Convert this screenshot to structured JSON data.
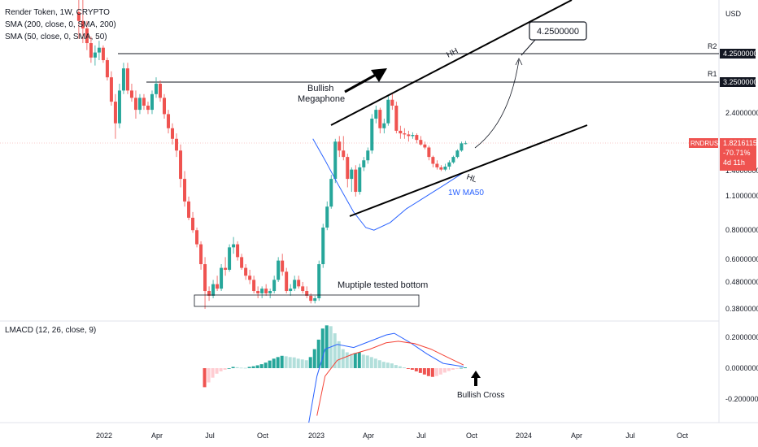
{
  "header": {
    "title": "Render Token, 1W, CRYPTO",
    "sma200": "SMA (200, close, 0, SMA, 200)",
    "sma50": "SMA (50, close, 0, SMA, 50)",
    "indicator": "LMACD (12, 26, close, 9)",
    "currency": "USD"
  },
  "price_axis": {
    "ticks": [
      "3.2500000",
      "2.4000000",
      "1.4000000",
      "1.1000000",
      "0.8000000",
      "0.6000000",
      "0.4800000",
      "0.3800000"
    ],
    "r2_label": "R2",
    "r2_value": "4.2500000",
    "r1_label": "R1",
    "r1_value": "3.2500000",
    "symbol": "RNDRUSD",
    "last_price": "1.8216115",
    "change": "-70.71%",
    "countdown": "4d 11h"
  },
  "macd_axis": {
    "ticks": [
      "0.2000000",
      "0.0000000",
      "-0.2000000"
    ]
  },
  "time_axis": {
    "ticks": [
      "2022",
      "Apr",
      "Jul",
      "Oct",
      "2023",
      "Apr",
      "Jul",
      "Oct",
      "2024",
      "Apr",
      "Jul",
      "Oct"
    ]
  },
  "annotations": {
    "target": "4.2500000",
    "hh": "HH",
    "hl": "HL",
    "pattern_line1": "Bullish",
    "pattern_line2": "Megaphone",
    "ma_label": "1W MA50",
    "bottom": "Muptiple tested bottom",
    "cross": "Bullish Cross"
  },
  "colors": {
    "up": "#26a69a",
    "down": "#ef5350",
    "ma50": "#2962ff",
    "signal": "#f44336",
    "macd_up_strong": "#26a69a",
    "macd_up_weak": "#b2dfdb",
    "macd_down_strong": "#ef5350",
    "macd_down_weak": "#ffcdd2"
  },
  "chart_data": {
    "type": "candlestick",
    "timeframe": "1W",
    "price_scale": "log",
    "y_range": [
      0.32,
      5.0
    ],
    "levels": [
      {
        "name": "R2",
        "value": 4.25
      },
      {
        "name": "R1",
        "value": 3.25
      }
    ],
    "candles": [
      [
        "2021-11-15",
        6.3,
        8.2,
        4.9,
        5.8
      ],
      [
        "2021-11-22",
        5.8,
        7.5,
        4.7,
        5.4
      ],
      [
        "2021-11-29",
        5.4,
        5.8,
        4.4,
        4.7
      ],
      [
        "2021-12-06",
        4.7,
        5.0,
        3.9,
        4.1
      ],
      [
        "2021-12-13",
        4.1,
        4.6,
        3.8,
        4.3
      ],
      [
        "2021-12-20",
        4.3,
        4.8,
        4.0,
        4.5
      ],
      [
        "2021-12-27",
        4.5,
        4.6,
        3.9,
        4.0
      ],
      [
        "2022-01-03",
        4.0,
        4.1,
        3.3,
        3.4
      ],
      [
        "2022-01-10",
        3.4,
        3.6,
        2.6,
        2.7
      ],
      [
        "2022-01-17",
        2.7,
        2.9,
        1.9,
        2.2
      ],
      [
        "2022-01-24",
        2.2,
        3.2,
        2.1,
        3.0
      ],
      [
        "2022-01-31",
        3.0,
        3.9,
        2.9,
        3.7
      ],
      [
        "2022-02-07",
        3.7,
        3.9,
        2.9,
        3.0
      ],
      [
        "2022-02-14",
        3.0,
        3.2,
        2.7,
        2.8
      ],
      [
        "2022-02-21",
        2.8,
        3.0,
        2.3,
        2.5
      ],
      [
        "2022-02-28",
        2.5,
        2.9,
        2.4,
        2.8
      ],
      [
        "2022-03-07",
        2.8,
        2.9,
        2.5,
        2.6
      ],
      [
        "2022-03-14",
        2.6,
        2.7,
        2.4,
        2.5
      ],
      [
        "2022-03-21",
        2.5,
        3.0,
        2.4,
        2.9
      ],
      [
        "2022-03-28",
        2.9,
        3.4,
        2.8,
        3.2
      ],
      [
        "2022-04-04",
        3.2,
        3.3,
        2.7,
        2.8
      ],
      [
        "2022-04-11",
        2.8,
        2.9,
        2.3,
        2.4
      ],
      [
        "2022-04-18",
        2.4,
        2.5,
        2.0,
        2.1
      ],
      [
        "2022-04-25",
        2.1,
        2.2,
        1.8,
        1.9
      ],
      [
        "2022-05-02",
        1.9,
        2.0,
        1.6,
        1.7
      ],
      [
        "2022-05-09",
        1.7,
        1.8,
        1.2,
        1.3
      ],
      [
        "2022-05-16",
        1.3,
        1.4,
        1.0,
        1.05
      ],
      [
        "2022-05-23",
        1.05,
        1.1,
        0.88,
        0.9
      ],
      [
        "2022-05-30",
        0.9,
        0.95,
        0.78,
        0.8
      ],
      [
        "2022-06-06",
        0.8,
        0.82,
        0.68,
        0.7
      ],
      [
        "2022-06-13",
        0.7,
        0.72,
        0.55,
        0.58
      ],
      [
        "2022-06-20",
        0.58,
        0.62,
        0.38,
        0.45
      ],
      [
        "2022-06-27",
        0.45,
        0.47,
        0.41,
        0.43
      ],
      [
        "2022-07-04",
        0.43,
        0.5,
        0.42,
        0.48
      ],
      [
        "2022-07-11",
        0.48,
        0.52,
        0.45,
        0.46
      ],
      [
        "2022-07-18",
        0.46,
        0.58,
        0.45,
        0.56
      ],
      [
        "2022-07-25",
        0.56,
        0.62,
        0.52,
        0.55
      ],
      [
        "2022-08-01",
        0.55,
        0.7,
        0.54,
        0.68
      ],
      [
        "2022-08-08",
        0.68,
        0.75,
        0.64,
        0.7
      ],
      [
        "2022-08-15",
        0.7,
        0.72,
        0.6,
        0.62
      ],
      [
        "2022-08-22",
        0.62,
        0.64,
        0.55,
        0.56
      ],
      [
        "2022-08-29",
        0.56,
        0.58,
        0.5,
        0.52
      ],
      [
        "2022-09-05",
        0.52,
        0.55,
        0.48,
        0.5
      ],
      [
        "2022-09-12",
        0.5,
        0.52,
        0.44,
        0.45
      ],
      [
        "2022-09-19",
        0.45,
        0.47,
        0.42,
        0.44
      ],
      [
        "2022-09-26",
        0.44,
        0.47,
        0.42,
        0.46
      ],
      [
        "2022-10-03",
        0.46,
        0.48,
        0.43,
        0.44
      ],
      [
        "2022-10-10",
        0.44,
        0.46,
        0.42,
        0.45
      ],
      [
        "2022-10-17",
        0.45,
        0.52,
        0.44,
        0.5
      ],
      [
        "2022-10-24",
        0.5,
        0.62,
        0.49,
        0.6
      ],
      [
        "2022-10-31",
        0.6,
        0.64,
        0.52,
        0.54
      ],
      [
        "2022-11-07",
        0.54,
        0.56,
        0.44,
        0.45
      ],
      [
        "2022-11-14",
        0.45,
        0.48,
        0.43,
        0.46
      ],
      [
        "2022-11-21",
        0.46,
        0.52,
        0.45,
        0.5
      ],
      [
        "2022-11-28",
        0.5,
        0.52,
        0.46,
        0.47
      ],
      [
        "2022-12-05",
        0.47,
        0.49,
        0.44,
        0.45
      ],
      [
        "2022-12-12",
        0.45,
        0.47,
        0.42,
        0.43
      ],
      [
        "2022-12-19",
        0.43,
        0.44,
        0.4,
        0.41
      ],
      [
        "2022-12-26",
        0.41,
        0.43,
        0.4,
        0.42
      ],
      [
        "2023-01-02",
        0.42,
        0.6,
        0.41,
        0.58
      ],
      [
        "2023-01-09",
        0.58,
        0.85,
        0.56,
        0.82
      ],
      [
        "2023-01-16",
        0.82,
        1.05,
        0.8,
        1.0
      ],
      [
        "2023-01-23",
        1.0,
        1.35,
        0.98,
        1.3
      ],
      [
        "2023-01-30",
        1.3,
        1.9,
        1.25,
        1.85
      ],
      [
        "2023-02-06",
        1.85,
        1.95,
        1.6,
        1.7
      ],
      [
        "2023-02-13",
        1.7,
        1.95,
        1.55,
        1.6
      ],
      [
        "2023-02-20",
        1.6,
        1.65,
        1.2,
        1.3
      ],
      [
        "2023-02-27",
        1.3,
        1.45,
        1.15,
        1.42
      ],
      [
        "2023-03-06",
        1.42,
        1.48,
        1.1,
        1.15
      ],
      [
        "2023-03-13",
        1.15,
        1.5,
        1.12,
        1.45
      ],
      [
        "2023-03-20",
        1.45,
        1.6,
        1.4,
        1.55
      ],
      [
        "2023-03-27",
        1.55,
        1.75,
        1.5,
        1.7
      ],
      [
        "2023-04-03",
        1.7,
        2.4,
        1.65,
        2.3
      ],
      [
        "2023-04-10",
        2.3,
        2.6,
        2.2,
        2.5
      ],
      [
        "2023-04-17",
        2.5,
        2.55,
        2.0,
        2.1
      ],
      [
        "2023-04-24",
        2.1,
        2.3,
        2.0,
        2.2
      ],
      [
        "2023-05-01",
        2.2,
        2.85,
        2.15,
        2.75
      ],
      [
        "2023-05-08",
        2.75,
        2.9,
        2.5,
        2.6
      ],
      [
        "2023-05-15",
        2.6,
        2.7,
        2.0,
        2.05
      ],
      [
        "2023-05-22",
        2.05,
        2.15,
        1.9,
        2.0
      ],
      [
        "2023-05-29",
        2.0,
        2.1,
        1.9,
        1.98
      ],
      [
        "2023-06-05",
        1.98,
        2.05,
        1.85,
        1.95
      ],
      [
        "2023-06-12",
        1.95,
        2.02,
        1.9,
        1.97
      ],
      [
        "2023-06-19",
        1.97,
        2.0,
        1.82,
        1.88
      ],
      [
        "2023-06-26",
        1.88,
        1.95,
        1.78,
        1.8
      ],
      [
        "2023-07-03",
        1.8,
        1.85,
        1.72,
        1.75
      ],
      [
        "2023-07-10",
        1.75,
        1.78,
        1.55,
        1.6
      ],
      [
        "2023-07-17",
        1.6,
        1.62,
        1.45,
        1.5
      ],
      [
        "2023-07-24",
        1.5,
        1.55,
        1.42,
        1.45
      ],
      [
        "2023-07-31",
        1.45,
        1.48,
        1.4,
        1.42
      ],
      [
        "2023-08-07",
        1.42,
        1.5,
        1.4,
        1.46
      ],
      [
        "2023-08-14",
        1.46,
        1.55,
        1.42,
        1.52
      ],
      [
        "2023-08-21",
        1.52,
        1.62,
        1.5,
        1.6
      ],
      [
        "2023-08-28",
        1.6,
        1.72,
        1.58,
        1.7
      ],
      [
        "2023-09-04",
        1.7,
        1.85,
        1.68,
        1.82
      ],
      [
        "2023-09-11",
        1.82,
        1.86,
        1.8,
        1.8216
      ]
    ],
    "ma50": {
      "name": "1W MA50",
      "x": [
        "2022-12-26",
        "2023-01-16",
        "2023-02-06",
        "2023-03-06",
        "2023-03-27",
        "2023-04-10",
        "2023-05-08",
        "2023-06-05",
        "2023-07-03",
        "2023-08-07",
        "2023-09-11"
      ],
      "y": [
        1.9,
        1.55,
        1.25,
        0.95,
        0.82,
        0.8,
        0.86,
        0.98,
        1.08,
        1.22,
        1.38
      ]
    },
    "macd": {
      "title": "LMACD (12, 26, close, 9)",
      "y_range": [
        -0.28,
        0.28
      ],
      "histogram": [
        [
          "2022-06-20",
          -0.12
        ],
        [
          "2022-06-27",
          -0.09
        ],
        [
          "2022-07-04",
          -0.06
        ],
        [
          "2022-07-11",
          -0.035
        ],
        [
          "2022-07-18",
          -0.02
        ],
        [
          "2022-07-25",
          -0.01
        ],
        [
          "2022-08-01",
          0.0
        ],
        [
          "2022-08-08",
          0.008
        ],
        [
          "2022-08-15",
          0.006
        ],
        [
          "2022-08-22",
          0.003
        ],
        [
          "2022-08-29",
          0.002
        ],
        [
          "2022-09-05",
          0.008
        ],
        [
          "2022-09-12",
          0.012
        ],
        [
          "2022-09-19",
          0.018
        ],
        [
          "2022-09-26",
          0.025
        ],
        [
          "2022-10-03",
          0.035
        ],
        [
          "2022-10-10",
          0.048
        ],
        [
          "2022-10-17",
          0.06
        ],
        [
          "2022-10-24",
          0.07
        ],
        [
          "2022-10-31",
          0.078
        ],
        [
          "2022-11-07",
          0.075
        ],
        [
          "2022-11-14",
          0.07
        ],
        [
          "2022-11-21",
          0.068
        ],
        [
          "2022-11-28",
          0.06
        ],
        [
          "2022-12-05",
          0.055
        ],
        [
          "2022-12-12",
          0.05
        ],
        [
          "2022-12-19",
          0.07
        ],
        [
          "2022-12-26",
          0.12
        ],
        [
          "2023-01-02",
          0.18
        ],
        [
          "2023-01-09",
          0.25
        ],
        [
          "2023-01-16",
          0.27
        ],
        [
          "2023-01-23",
          0.265
        ],
        [
          "2023-01-30",
          0.22
        ],
        [
          "2023-02-06",
          0.17
        ],
        [
          "2023-02-13",
          0.12
        ],
        [
          "2023-02-20",
          0.1
        ],
        [
          "2023-02-27",
          0.09
        ],
        [
          "2023-03-06",
          0.095
        ],
        [
          "2023-03-13",
          0.1
        ],
        [
          "2023-03-20",
          0.085
        ],
        [
          "2023-03-27",
          0.08
        ],
        [
          "2023-04-03",
          0.07
        ],
        [
          "2023-04-10",
          0.06
        ],
        [
          "2023-04-17",
          0.05
        ],
        [
          "2023-04-24",
          0.04
        ],
        [
          "2023-05-01",
          0.035
        ],
        [
          "2023-05-08",
          0.03
        ],
        [
          "2023-05-15",
          0.02
        ],
        [
          "2023-05-22",
          0.012
        ],
        [
          "2023-05-29",
          0.005
        ],
        [
          "2023-06-05",
          -0.005
        ],
        [
          "2023-06-12",
          -0.01
        ],
        [
          "2023-06-19",
          -0.02
        ],
        [
          "2023-06-26",
          -0.03
        ],
        [
          "2023-07-03",
          -0.04
        ],
        [
          "2023-07-10",
          -0.05
        ],
        [
          "2023-07-17",
          -0.055
        ],
        [
          "2023-07-24",
          -0.05
        ],
        [
          "2023-07-31",
          -0.04
        ],
        [
          "2023-08-07",
          -0.028
        ],
        [
          "2023-08-14",
          -0.018
        ],
        [
          "2023-08-21",
          -0.01
        ],
        [
          "2023-08-28",
          -0.004
        ],
        [
          "2023-09-04",
          0.002
        ],
        [
          "2023-09-11",
          0.005
        ]
      ],
      "macd_line": {
        "x": [
          "2022-12-19",
          "2023-01-02",
          "2023-01-16",
          "2023-02-06",
          "2023-03-06",
          "2023-04-03",
          "2023-05-01",
          "2023-05-15",
          "2023-06-12",
          "2023-07-10",
          "2023-08-07",
          "2023-09-11"
        ],
        "y": [
          -0.35,
          -0.05,
          0.12,
          0.15,
          0.13,
          0.17,
          0.21,
          0.22,
          0.16,
          0.09,
          0.03,
          0.01
        ]
      },
      "signal_line": {
        "x": [
          "2023-01-02",
          "2023-01-16",
          "2023-02-06",
          "2023-03-06",
          "2023-04-03",
          "2023-05-01",
          "2023-05-22",
          "2023-06-19",
          "2023-07-17",
          "2023-08-14",
          "2023-09-11"
        ],
        "y": [
          -0.3,
          -0.05,
          0.05,
          0.09,
          0.12,
          0.16,
          0.17,
          0.155,
          0.12,
          0.07,
          0.02
        ]
      }
    }
  }
}
